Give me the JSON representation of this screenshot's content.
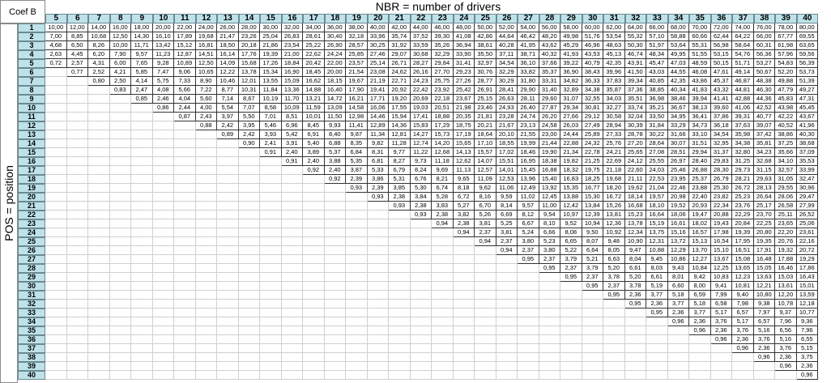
{
  "corner_label": "Coef B",
  "column_header_title": "NBR = number of drivers",
  "row_header_title": "POS = position",
  "columns": [
    5,
    6,
    7,
    8,
    9,
    10,
    11,
    12,
    13,
    14,
    15,
    16,
    17,
    18,
    19,
    20,
    21,
    22,
    23,
    24,
    25,
    26,
    27,
    28,
    29,
    30,
    31,
    32,
    33,
    34,
    35,
    36,
    37,
    38,
    39,
    40
  ],
  "rows": [
    1,
    2,
    3,
    4,
    5,
    6,
    7,
    8,
    9,
    10,
    11,
    12,
    13,
    14,
    15,
    16,
    17,
    18,
    19,
    20,
    21,
    22,
    23,
    24,
    25,
    26,
    27,
    28,
    29,
    30,
    31,
    32,
    33,
    34,
    35,
    36,
    37,
    38,
    39,
    40
  ],
  "values": [
    [
      "10,00",
      "12,00",
      "14,00",
      "16,00",
      "18,00",
      "20,00",
      "22,00",
      "24,00",
      "26,00",
      "28,00",
      "30,00",
      "32,00",
      "34,00",
      "36,00",
      "38,00",
      "40,00",
      "42,00",
      "44,00",
      "46,00",
      "48,00",
      "50,00",
      "52,00",
      "54,00",
      "56,00",
      "58,00",
      "60,00",
      "62,00",
      "64,00",
      "66,00",
      "68,00",
      "70,00",
      "72,00",
      "74,00",
      "76,00",
      "78,00",
      "80,00"
    ],
    [
      "7,00",
      "8,85",
      "10,68",
      "12,50",
      "14,30",
      "16,10",
      "17,89",
      "19,68",
      "21,47",
      "23,26",
      "25,04",
      "26,83",
      "28,61",
      "30,40",
      "32,18",
      "33,96",
      "35,74",
      "37,52",
      "39,30",
      "41,08",
      "42,86",
      "44,64",
      "46,42",
      "48,20",
      "49,98",
      "51,76",
      "53,54",
      "55,32",
      "57,10",
      "58,88",
      "60,66",
      "62,44",
      "64,22",
      "66,00",
      "67,77",
      "69,55"
    ],
    [
      "4,68",
      "6,50",
      "8,26",
      "10,00",
      "11,71",
      "13,42",
      "15,12",
      "16,81",
      "18,50",
      "20,18",
      "21,86",
      "23,54",
      "25,22",
      "26,90",
      "28,57",
      "30,25",
      "31,92",
      "33,59",
      "35,26",
      "36,94",
      "38,61",
      "40,28",
      "41,95",
      "43,62",
      "45,29",
      "46,96",
      "48,63",
      "50,30",
      "51,97",
      "53,64",
      "55,31",
      "56,98",
      "58,64",
      "60,31",
      "61,98",
      "63,65"
    ],
    [
      "2,63",
      "4,45",
      "6,20",
      "7,90",
      "9,57",
      "11,23",
      "12,87",
      "14,51",
      "16,14",
      "17,76",
      "19,39",
      "21,00",
      "22,62",
      "24,24",
      "25,85",
      "27,46",
      "29,07",
      "30,68",
      "32,29",
      "33,90",
      "35,50",
      "37,11",
      "38,71",
      "40,32",
      "41,93",
      "43,53",
      "45,13",
      "46,74",
      "48,34",
      "49,95",
      "51,55",
      "53,15",
      "54,76",
      "56,36",
      "57,96",
      "59,56"
    ],
    [
      "0,72",
      "2,57",
      "4,31",
      "6,00",
      "7,65",
      "9,28",
      "10,89",
      "12,50",
      "14,09",
      "15,68",
      "17,26",
      "18,84",
      "20,42",
      "22,00",
      "23,57",
      "25,14",
      "26,71",
      "28,27",
      "29,84",
      "31,41",
      "32,97",
      "34,54",
      "36,10",
      "37,66",
      "39,22",
      "40,79",
      "42,35",
      "43,91",
      "45,47",
      "47,03",
      "48,59",
      "50,15",
      "51,71",
      "53,27",
      "54,83",
      "56,39"
    ],
    [
      "",
      "0,77",
      "2,52",
      "4,21",
      "5,85",
      "7,47",
      "9,06",
      "10,65",
      "12,22",
      "13,78",
      "15,34",
      "16,90",
      "18,45",
      "20,00",
      "21,54",
      "23,08",
      "24,62",
      "26,16",
      "27,70",
      "29,23",
      "30,76",
      "32,29",
      "33,82",
      "35,37",
      "36,90",
      "38,43",
      "39,96",
      "41,50",
      "43,03",
      "44,55",
      "46,08",
      "47,61",
      "49,14",
      "50,67",
      "52,20",
      "53,73"
    ],
    [
      "",
      "",
      "0,80",
      "2,50",
      "4,14",
      "5,75",
      "7,33",
      "8,90",
      "10,46",
      "12,01",
      "13,55",
      "15,09",
      "16,62",
      "18,15",
      "19,67",
      "21,19",
      "22,71",
      "24,23",
      "25,75",
      "27,26",
      "28,77",
      "30,29",
      "31,80",
      "33,31",
      "34,82",
      "36,33",
      "37,83",
      "39,34",
      "40,85",
      "42,35",
      "43,86",
      "45,37",
      "46,87",
      "48,38",
      "49,88",
      "51,39"
    ],
    [
      "",
      "",
      "",
      "0,83",
      "2,47",
      "4,08",
      "5,66",
      "7,22",
      "8,77",
      "10,31",
      "11,84",
      "13,36",
      "14,88",
      "16,40",
      "17,90",
      "19,41",
      "20,92",
      "22,42",
      "23,92",
      "25,42",
      "26,91",
      "28,41",
      "29,90",
      "31,40",
      "32,89",
      "34,38",
      "35,87",
      "37,36",
      "38,85",
      "40,34",
      "41,83",
      "43,32",
      "44,81",
      "46,30",
      "47,79",
      "49,27"
    ],
    [
      "",
      "",
      "",
      "",
      "0,85",
      "2,46",
      "4,04",
      "5,60",
      "7,14",
      "8,67",
      "10,19",
      "11,70",
      "13,21",
      "14,72",
      "16,21",
      "17,71",
      "19,20",
      "20,69",
      "22,18",
      "23,67",
      "25,15",
      "26,63",
      "28,11",
      "29,60",
      "31,07",
      "32,55",
      "34,03",
      "35,51",
      "36,98",
      "38,46",
      "39,94",
      "41,41",
      "42,88",
      "44,36",
      "45,83",
      "47,31"
    ],
    [
      "",
      "",
      "",
      "",
      "",
      "0,86",
      "2,44",
      "4,00",
      "5,54",
      "7,07",
      "8,58",
      "10,09",
      "11,59",
      "13,09",
      "14,58",
      "16,06",
      "17,55",
      "19,03",
      "20,51",
      "21,98",
      "23,46",
      "24,93",
      "26,40",
      "27,87",
      "29,34",
      "30,81",
      "32,27",
      "33,74",
      "35,21",
      "36,67",
      "38,13",
      "39,60",
      "41,06",
      "42,52",
      "43,98",
      "45,45"
    ],
    [
      "",
      "",
      "",
      "",
      "",
      "",
      "0,87",
      "2,43",
      "3,97",
      "5,50",
      "7,01",
      "8,51",
      "10,01",
      "11,50",
      "12,98",
      "14,46",
      "15,94",
      "17,41",
      "18,88",
      "20,35",
      "21,81",
      "23,28",
      "24,74",
      "26,20",
      "27,66",
      "29,12",
      "30,58",
      "32,04",
      "33,50",
      "34,95",
      "36,41",
      "37,86",
      "39,31",
      "40,77",
      "42,22",
      "43,67"
    ],
    [
      "",
      "",
      "",
      "",
      "",
      "",
      "",
      "0,88",
      "2,42",
      "3,95",
      "5,46",
      "6,96",
      "8,45",
      "9,93",
      "11,41",
      "12,89",
      "14,36",
      "15,83",
      "17,29",
      "18,75",
      "20,21",
      "21,67",
      "23,13",
      "24,58",
      "26,03",
      "27,49",
      "28,94",
      "30,39",
      "31,84",
      "33,29",
      "34,73",
      "36,18",
      "37,63",
      "39,07",
      "40,52",
      "41,96"
    ],
    [
      "",
      "",
      "",
      "",
      "",
      "",
      "",
      "",
      "0,89",
      "2,42",
      "3,93",
      "5,42",
      "6,91",
      "8,40",
      "9,87",
      "11,34",
      "12,81",
      "14,27",
      "15,73",
      "17,19",
      "18,64",
      "20,10",
      "21,55",
      "23,00",
      "24,44",
      "25,89",
      "27,33",
      "28,78",
      "30,22",
      "31,66",
      "33,10",
      "34,54",
      "35,98",
      "37,42",
      "38,86",
      "40,30"
    ],
    [
      "",
      "",
      "",
      "",
      "",
      "",
      "",
      "",
      "",
      "0,90",
      "2,41",
      "3,91",
      "5,40",
      "6,88",
      "8,35",
      "9,82",
      "11,28",
      "12,74",
      "14,20",
      "15,65",
      "17,10",
      "18,55",
      "19,99",
      "21,44",
      "22,88",
      "24,32",
      "25,76",
      "27,20",
      "28,64",
      "30,07",
      "31,51",
      "32,95",
      "34,38",
      "35,81",
      "37,25",
      "38,68"
    ],
    [
      "",
      "",
      "",
      "",
      "",
      "",
      "",
      "",
      "",
      "",
      "0,91",
      "2,40",
      "3,89",
      "5,37",
      "6,84",
      "8,31",
      "9,77",
      "11,22",
      "12,68",
      "14,13",
      "15,57",
      "17,02",
      "18,46",
      "19,90",
      "21,34",
      "22,78",
      "24,21",
      "25,65",
      "27,08",
      "28,51",
      "29,94",
      "31,37",
      "32,80",
      "34,23",
      "35,66",
      "37,09"
    ],
    [
      "",
      "",
      "",
      "",
      "",
      "",
      "",
      "",
      "",
      "",
      "",
      "0,91",
      "2,40",
      "3,88",
      "5,35",
      "6,81",
      "8,27",
      "9,73",
      "11,18",
      "12,62",
      "14,07",
      "15,51",
      "16,95",
      "18,38",
      "19,82",
      "21,25",
      "22,69",
      "24,12",
      "25,55",
      "26,97",
      "28,40",
      "29,83",
      "31,25",
      "32,68",
      "34,10",
      "35,53"
    ],
    [
      "",
      "",
      "",
      "",
      "",
      "",
      "",
      "",
      "",
      "",
      "",
      "",
      "0,92",
      "2,40",
      "3,87",
      "5,33",
      "6,79",
      "8,24",
      "9,69",
      "11,13",
      "12,57",
      "14,01",
      "15,45",
      "16,88",
      "18,32",
      "19,75",
      "21,18",
      "22,60",
      "24,03",
      "25,46",
      "26,88",
      "28,30",
      "29,73",
      "31,15",
      "32,57",
      "33,99"
    ],
    [
      "",
      "",
      "",
      "",
      "",
      "",
      "",
      "",
      "",
      "",
      "",
      "",
      "",
      "0,92",
      "2,39",
      "3,86",
      "5,31",
      "6,76",
      "8,21",
      "9,65",
      "11,09",
      "12,53",
      "13,96",
      "15,40",
      "16,83",
      "18,25",
      "19,68",
      "21,11",
      "22,53",
      "23,95",
      "25,37",
      "26,79",
      "28,21",
      "29,63",
      "31,05",
      "32,47"
    ],
    [
      "",
      "",
      "",
      "",
      "",
      "",
      "",
      "",
      "",
      "",
      "",
      "",
      "",
      "",
      "0,93",
      "2,39",
      "3,85",
      "5,30",
      "6,74",
      "8,18",
      "9,62",
      "11,06",
      "12,49",
      "13,92",
      "15,35",
      "16,77",
      "18,20",
      "19,62",
      "21,04",
      "22,46",
      "23,88",
      "25,30",
      "26,72",
      "28,13",
      "29,55",
      "30,96"
    ],
    [
      "",
      "",
      "",
      "",
      "",
      "",
      "",
      "",
      "",
      "",
      "",
      "",
      "",
      "",
      "",
      "0,93",
      "2,38",
      "3,84",
      "5,28",
      "6,72",
      "8,16",
      "9,59",
      "11,02",
      "12,45",
      "13,88",
      "15,30",
      "16,72",
      "18,14",
      "19,57",
      "20,98",
      "22,40",
      "23,82",
      "25,23",
      "26,64",
      "28,06",
      "29,47"
    ],
    [
      "",
      "",
      "",
      "",
      "",
      "",
      "",
      "",
      "",
      "",
      "",
      "",
      "",
      "",
      "",
      "",
      "0,93",
      "2,38",
      "3,83",
      "5,27",
      "6,70",
      "8,14",
      "9,57",
      "11,00",
      "12,42",
      "13,84",
      "15,26",
      "16,68",
      "18,10",
      "19,52",
      "20,93",
      "22,34",
      "23,76",
      "25,17",
      "26,58",
      "27,99"
    ],
    [
      "",
      "",
      "",
      "",
      "",
      "",
      "",
      "",
      "",
      "",
      "",
      "",
      "",
      "",
      "",
      "",
      "",
      "0,93",
      "2,38",
      "3,82",
      "5,26",
      "6,69",
      "8,12",
      "9,54",
      "10,97",
      "12,39",
      "13,81",
      "15,23",
      "16,64",
      "18,06",
      "19,47",
      "20,88",
      "22,29",
      "23,70",
      "25,11",
      "26,52"
    ],
    [
      "",
      "",
      "",
      "",
      "",
      "",
      "",
      "",
      "",
      "",
      "",
      "",
      "",
      "",
      "",
      "",
      "",
      "",
      "0,94",
      "2,38",
      "3,81",
      "5,25",
      "6,67",
      "8,10",
      "9,52",
      "10,94",
      "12,36",
      "13,78",
      "15,19",
      "16,61",
      "18,02",
      "19,43",
      "20,84",
      "22,25",
      "23,65",
      "25,06"
    ],
    [
      "",
      "",
      "",
      "",
      "",
      "",
      "",
      "",
      "",
      "",
      "",
      "",
      "",
      "",
      "",
      "",
      "",
      "",
      "",
      "0,94",
      "2,37",
      "3,81",
      "5,24",
      "6,66",
      "8,08",
      "9,50",
      "10,92",
      "12,34",
      "13,75",
      "15,16",
      "16,57",
      "17,98",
      "19,39",
      "20,80",
      "22,20",
      "23,61"
    ],
    [
      "",
      "",
      "",
      "",
      "",
      "",
      "",
      "",
      "",
      "",
      "",
      "",
      "",
      "",
      "",
      "",
      "",
      "",
      "",
      "",
      "0,94",
      "2,37",
      "3,80",
      "5,23",
      "6,65",
      "8,07",
      "9,48",
      "10,90",
      "12,31",
      "13,72",
      "15,13",
      "16,54",
      "17,95",
      "19,35",
      "20,76",
      "22,16"
    ],
    [
      "",
      "",
      "",
      "",
      "",
      "",
      "",
      "",
      "",
      "",
      "",
      "",
      "",
      "",
      "",
      "",
      "",
      "",
      "",
      "",
      "",
      "0,94",
      "2,37",
      "3,80",
      "5,22",
      "6,64",
      "8,05",
      "9,47",
      "10,88",
      "12,29",
      "13,70",
      "15,10",
      "16,51",
      "17,91",
      "19,32",
      "20,72"
    ],
    [
      "",
      "",
      "",
      "",
      "",
      "",
      "",
      "",
      "",
      "",
      "",
      "",
      "",
      "",
      "",
      "",
      "",
      "",
      "",
      "",
      "",
      "",
      "0,95",
      "2,37",
      "3,79",
      "5,21",
      "6,63",
      "8,04",
      "9,45",
      "10,86",
      "12,27",
      "13,67",
      "15,08",
      "16,48",
      "17,88",
      "19,29"
    ],
    [
      "",
      "",
      "",
      "",
      "",
      "",
      "",
      "",
      "",
      "",
      "",
      "",
      "",
      "",
      "",
      "",
      "",
      "",
      "",
      "",
      "",
      "",
      "",
      "0,95",
      "2,37",
      "3,79",
      "5,20",
      "6,61",
      "8,03",
      "9,43",
      "10,84",
      "12,25",
      "13,65",
      "15,05",
      "16,46",
      "17,86"
    ],
    [
      "",
      "",
      "",
      "",
      "",
      "",
      "",
      "",
      "",
      "",
      "",
      "",
      "",
      "",
      "",
      "",
      "",
      "",
      "",
      "",
      "",
      "",
      "",
      "",
      "0,95",
      "2,37",
      "3,78",
      "5,20",
      "6,61",
      "8,01",
      "9,42",
      "10,83",
      "12,23",
      "13,63",
      "15,03",
      "16,43"
    ],
    [
      "",
      "",
      "",
      "",
      "",
      "",
      "",
      "",
      "",
      "",
      "",
      "",
      "",
      "",
      "",
      "",
      "",
      "",
      "",
      "",
      "",
      "",
      "",
      "",
      "",
      "0,95",
      "2,37",
      "3,78",
      "5,19",
      "6,60",
      "8,00",
      "9,41",
      "10,81",
      "12,21",
      "13,61",
      "15,01"
    ],
    [
      "",
      "",
      "",
      "",
      "",
      "",
      "",
      "",
      "",
      "",
      "",
      "",
      "",
      "",
      "",
      "",
      "",
      "",
      "",
      "",
      "",
      "",
      "",
      "",
      "",
      "",
      "0,95",
      "2,36",
      "3,77",
      "5,18",
      "6,59",
      "7,99",
      "9,40",
      "10,80",
      "12,20",
      "13,59"
    ],
    [
      "",
      "",
      "",
      "",
      "",
      "",
      "",
      "",
      "",
      "",
      "",
      "",
      "",
      "",
      "",
      "",
      "",
      "",
      "",
      "",
      "",
      "",
      "",
      "",
      "",
      "",
      "",
      "0,95",
      "2,36",
      "3,77",
      "5,18",
      "6,58",
      "7,98",
      "9,38",
      "10,78",
      "12,18"
    ],
    [
      "",
      "",
      "",
      "",
      "",
      "",
      "",
      "",
      "",
      "",
      "",
      "",
      "",
      "",
      "",
      "",
      "",
      "",
      "",
      "",
      "",
      "",
      "",
      "",
      "",
      "",
      "",
      "",
      "0,95",
      "2,36",
      "3,77",
      "5,17",
      "6,57",
      "7,97",
      "9,37",
      "10,77"
    ],
    [
      "",
      "",
      "",
      "",
      "",
      "",
      "",
      "",
      "",
      "",
      "",
      "",
      "",
      "",
      "",
      "",
      "",
      "",
      "",
      "",
      "",
      "",
      "",
      "",
      "",
      "",
      "",
      "",
      "",
      "0,96",
      "2,36",
      "3,76",
      "5,17",
      "6,57",
      "7,96",
      "9,36"
    ],
    [
      "",
      "",
      "",
      "",
      "",
      "",
      "",
      "",
      "",
      "",
      "",
      "",
      "",
      "",
      "",
      "",
      "",
      "",
      "",
      "",
      "",
      "",
      "",
      "",
      "",
      "",
      "",
      "",
      "",
      "",
      "0,96",
      "2,36",
      "3,76",
      "5,16",
      "6,56",
      "7,96"
    ],
    [
      "",
      "",
      "",
      "",
      "",
      "",
      "",
      "",
      "",
      "",
      "",
      "",
      "",
      "",
      "",
      "",
      "",
      "",
      "",
      "",
      "",
      "",
      "",
      "",
      "",
      "",
      "",
      "",
      "",
      "",
      "",
      "0,96",
      "2,36",
      "3,76",
      "5,16",
      "6,55"
    ],
    [
      "",
      "",
      "",
      "",
      "",
      "",
      "",
      "",
      "",
      "",
      "",
      "",
      "",
      "",
      "",
      "",
      "",
      "",
      "",
      "",
      "",
      "",
      "",
      "",
      "",
      "",
      "",
      "",
      "",
      "",
      "",
      "",
      "0,96",
      "2,36",
      "3,76",
      "5,15"
    ],
    [
      "",
      "",
      "",
      "",
      "",
      "",
      "",
      "",
      "",
      "",
      "",
      "",
      "",
      "",
      "",
      "",
      "",
      "",
      "",
      "",
      "",
      "",
      "",
      "",
      "",
      "",
      "",
      "",
      "",
      "",
      "",
      "",
      "",
      "0,96",
      "2,36",
      "3,75"
    ],
    [
      "",
      "",
      "",
      "",
      "",
      "",
      "",
      "",
      "",
      "",
      "",
      "",
      "",
      "",
      "",
      "",
      "",
      "",
      "",
      "",
      "",
      "",
      "",
      "",
      "",
      "",
      "",
      "",
      "",
      "",
      "",
      "",
      "",
      "",
      "0,96",
      "2,36"
    ],
    [
      "",
      "",
      "",
      "",
      "",
      "",
      "",
      "",
      "",
      "",
      "",
      "",
      "",
      "",
      "",
      "",
      "",
      "",
      "",
      "",
      "",
      "",
      "",
      "",
      "",
      "",
      "",
      "",
      "",
      "",
      "",
      "",
      "",
      "",
      "",
      "0,96"
    ]
  ]
}
